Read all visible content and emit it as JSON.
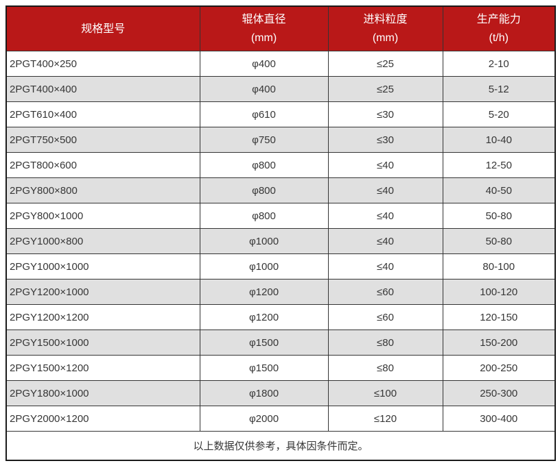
{
  "theme": {
    "header_bg": "#b91818",
    "header_text": "#ffffff",
    "row_bg": "#ffffff",
    "row_alt_bg": "#e0e0e0",
    "border_color": "#333333",
    "text_color": "#363636"
  },
  "chart_data": {
    "type": "table",
    "columns": [
      {
        "label": "规格型号",
        "unit": ""
      },
      {
        "label": "辊体直径",
        "unit": "(mm)"
      },
      {
        "label": "进料粒度",
        "unit": "(mm)"
      },
      {
        "label": "生产能力",
        "unit": "(t/h)"
      }
    ],
    "rows": [
      {
        "model": "2PGT400×250",
        "diameter": "φ400",
        "feed_size": "≤25",
        "capacity": "2-10"
      },
      {
        "model": "2PGT400×400",
        "diameter": "φ400",
        "feed_size": "≤25",
        "capacity": "5-12"
      },
      {
        "model": "2PGT610×400",
        "diameter": "φ610",
        "feed_size": "≤30",
        "capacity": "5-20"
      },
      {
        "model": "2PGT750×500",
        "diameter": "φ750",
        "feed_size": "≤30",
        "capacity": "10-40"
      },
      {
        "model": "2PGT800×600",
        "diameter": "φ800",
        "feed_size": "≤40",
        "capacity": "12-50"
      },
      {
        "model": "2PGY800×800",
        "diameter": "φ800",
        "feed_size": "≤40",
        "capacity": "40-50"
      },
      {
        "model": "2PGY800×1000",
        "diameter": "φ800",
        "feed_size": "≤40",
        "capacity": "50-80"
      },
      {
        "model": "2PGY1000×800",
        "diameter": "φ1000",
        "feed_size": "≤40",
        "capacity": "50-80"
      },
      {
        "model": "2PGY1000×1000",
        "diameter": "φ1000",
        "feed_size": "≤40",
        "capacity": "80-100"
      },
      {
        "model": "2PGY1200×1000",
        "diameter": "φ1200",
        "feed_size": "≤60",
        "capacity": "100-120"
      },
      {
        "model": "2PGY1200×1200",
        "diameter": "φ1200",
        "feed_size": "≤60",
        "capacity": "120-150"
      },
      {
        "model": "2PGY1500×1000",
        "diameter": "φ1500",
        "feed_size": "≤80",
        "capacity": "150-200"
      },
      {
        "model": "2PGY1500×1200",
        "diameter": "φ1500",
        "feed_size": "≤80",
        "capacity": "200-250"
      },
      {
        "model": "2PGY1800×1000",
        "diameter": "φ1800",
        "feed_size": "≤100",
        "capacity": "250-300"
      },
      {
        "model": "2PGY2000×1200",
        "diameter": "φ2000",
        "feed_size": "≤120",
        "capacity": "300-400"
      }
    ],
    "footer_note": "以上数据仅供参考，具体因条件而定。"
  }
}
